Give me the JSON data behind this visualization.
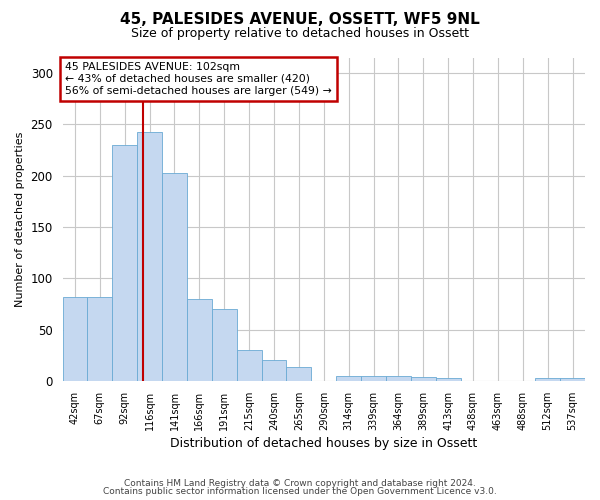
{
  "title": "45, PALESIDES AVENUE, OSSETT, WF5 9NL",
  "subtitle": "Size of property relative to detached houses in Ossett",
  "xlabel": "Distribution of detached houses by size in Ossett",
  "ylabel": "Number of detached properties",
  "categories": [
    "42sqm",
    "67sqm",
    "92sqm",
    "116sqm",
    "141sqm",
    "166sqm",
    "191sqm",
    "215sqm",
    "240sqm",
    "265sqm",
    "290sqm",
    "314sqm",
    "339sqm",
    "364sqm",
    "389sqm",
    "413sqm",
    "438sqm",
    "463sqm",
    "488sqm",
    "512sqm",
    "537sqm"
  ],
  "values": [
    82,
    82,
    230,
    242,
    203,
    80,
    70,
    30,
    20,
    14,
    0,
    5,
    5,
    5,
    4,
    3,
    0,
    0,
    0,
    3,
    3
  ],
  "bar_color": "#c5d8f0",
  "bar_edgecolor": "#6aaad4",
  "vline_x": 2.75,
  "vline_color": "#c00000",
  "annotation_line1": "45 PALESIDES AVENUE: 102sqm",
  "annotation_line2": "← 43% of detached houses are smaller (420)",
  "annotation_line3": "56% of semi-detached houses are larger (549) →",
  "annotation_box_color": "#ffffff",
  "annotation_box_edgecolor": "#c00000",
  "ylim": [
    0,
    315
  ],
  "yticks": [
    0,
    50,
    100,
    150,
    200,
    250,
    300
  ],
  "footer_line1": "Contains HM Land Registry data © Crown copyright and database right 2024.",
  "footer_line2": "Contains public sector information licensed under the Open Government Licence v3.0.",
  "background_color": "#ffffff",
  "grid_color": "#c8c8c8"
}
